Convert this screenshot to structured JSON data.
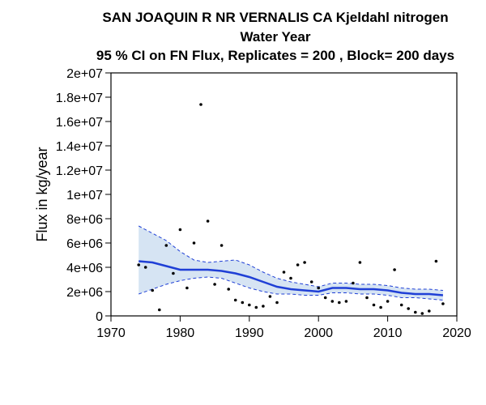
{
  "chart_data": {
    "type": "line",
    "title_lines": [
      "SAN JOAQUIN R NR VERNALIS CA   Kjeldahl nitrogen",
      "Water Year",
      "95 % CI on FN Flux, Replicates = 200 , Block= 200 days"
    ],
    "xlabel": "",
    "ylabel": "Flux in kg/year",
    "xlim": [
      1970,
      2020
    ],
    "ylim": [
      0,
      20000000
    ],
    "x_ticks": [
      1970,
      1980,
      1990,
      2000,
      2010,
      2020
    ],
    "x_tick_labels": [
      "1970",
      "1980",
      "1990",
      "2000",
      "2010",
      "2020"
    ],
    "y_ticks": [
      0,
      2000000,
      4000000,
      6000000,
      8000000,
      10000000,
      12000000,
      14000000,
      16000000,
      18000000,
      20000000
    ],
    "y_tick_labels": [
      "0",
      "2e+06",
      "4e+06",
      "6e+06",
      "8e+06",
      "1e+07",
      "1.2e+07",
      "1.4e+07",
      "1.6e+07",
      "1.8e+07",
      "2e+07"
    ],
    "grid": false,
    "colors": {
      "trend": "#1f3fd6",
      "band": "#d6e4f3",
      "ci_line": "#1f3fd6",
      "points": "#000000"
    },
    "trend": {
      "x": [
        1974,
        1976,
        1978,
        1980,
        1982,
        1984,
        1986,
        1988,
        1990,
        1992,
        1994,
        1996,
        1998,
        2000,
        2002,
        2004,
        2006,
        2008,
        2010,
        2012,
        2014,
        2016,
        2018
      ],
      "y": [
        4500000,
        4400000,
        4100000,
        3800000,
        3800000,
        3800000,
        3700000,
        3500000,
        3200000,
        2800000,
        2400000,
        2200000,
        2100000,
        2000000,
        2300000,
        2300000,
        2200000,
        2200000,
        2100000,
        1900000,
        1800000,
        1800000,
        1700000
      ]
    },
    "ci_upper": [
      7400000,
      6800000,
      6200000,
      5300000,
      4600000,
      4400000,
      4500000,
      4600000,
      4200000,
      3600000,
      3100000,
      2800000,
      2600000,
      2400000,
      2700000,
      2700000,
      2600000,
      2600000,
      2500000,
      2300000,
      2200000,
      2200000,
      2100000
    ],
    "ci_lower": [
      1800000,
      2200000,
      2600000,
      2900000,
      3100000,
      3200000,
      3100000,
      2700000,
      2300000,
      2000000,
      1800000,
      1800000,
      1700000,
      1700000,
      1900000,
      1900000,
      1800000,
      1800000,
      1700000,
      1500000,
      1500000,
      1400000,
      1300000
    ],
    "observations": {
      "x": [
        1974,
        1975,
        1976,
        1977,
        1978,
        1979,
        1980,
        1981,
        1982,
        1983,
        1984,
        1985,
        1986,
        1987,
        1988,
        1989,
        1990,
        1991,
        1992,
        1993,
        1994,
        1995,
        1996,
        1997,
        1998,
        1999,
        2000,
        2001,
        2002,
        2003,
        2004,
        2005,
        2006,
        2007,
        2008,
        2009,
        2010,
        2011,
        2012,
        2013,
        2014,
        2015,
        2016,
        2017,
        2018
      ],
      "y": [
        4200000,
        4000000,
        2100000,
        500000,
        5800000,
        3500000,
        7100000,
        2300000,
        6000000,
        17400000,
        7800000,
        2600000,
        5800000,
        2200000,
        1300000,
        1100000,
        900000,
        700000,
        800000,
        1600000,
        1100000,
        3600000,
        3100000,
        4200000,
        4400000,
        2800000,
        2300000,
        1500000,
        1200000,
        1100000,
        1200000,
        2700000,
        4400000,
        1500000,
        900000,
        700000,
        1200000,
        3800000,
        900000,
        600000,
        300000,
        200000,
        400000,
        4500000,
        1000000
      ]
    }
  }
}
